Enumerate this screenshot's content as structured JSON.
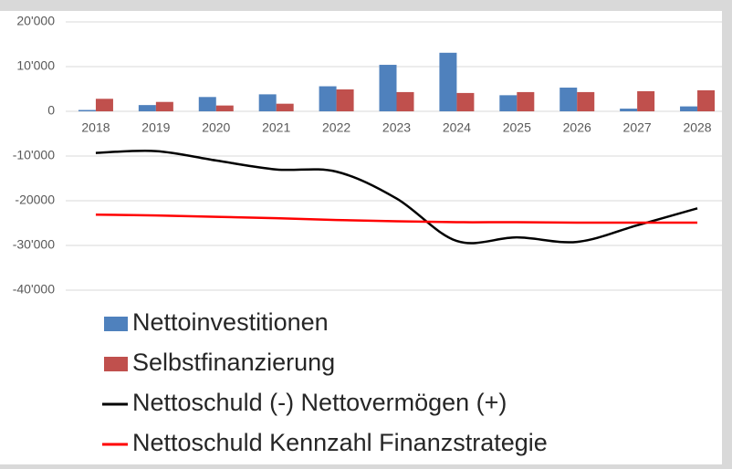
{
  "chart_data": {
    "type": "bar-line",
    "categories": [
      "2018",
      "2019",
      "2020",
      "2021",
      "2022",
      "2023",
      "2024",
      "2025",
      "2026",
      "2027",
      "2028"
    ],
    "series": [
      {
        "name": "Nettoinvestitionen",
        "type": "bar",
        "color": "#4f81bd",
        "values": [
          300,
          1400,
          3200,
          3800,
          5600,
          10400,
          13100,
          3600,
          5300,
          600,
          1100
        ]
      },
      {
        "name": "Selbstfinanzierung",
        "type": "bar",
        "color": "#c0504d",
        "values": [
          2800,
          2100,
          1300,
          1700,
          4900,
          4300,
          4100,
          4300,
          4300,
          4500,
          4700
        ]
      },
      {
        "name": "Nettoschuld (-) Nettovermögen (+)",
        "type": "line",
        "color": "#000000",
        "values": [
          -9300,
          -8900,
          -11000,
          -13000,
          -13500,
          -19500,
          -29000,
          -28200,
          -29200,
          -25500,
          -21700
        ]
      },
      {
        "name": "Nettoschuld Kennzahl Finanzstrategie",
        "type": "line",
        "color": "#ff0000",
        "values": [
          -23100,
          -23300,
          -23600,
          -23900,
          -24300,
          -24600,
          -24800,
          -24800,
          -24900,
          -24900,
          -24900
        ]
      }
    ],
    "ylim": [
      -40000,
      20000
    ],
    "yticks": [
      {
        "value": -40000,
        "label": "-40'000"
      },
      {
        "value": -30000,
        "label": "-30'000"
      },
      -20000,
      {
        "value": -10000,
        "label": "-10'000"
      },
      0,
      {
        "value": 10000,
        "label": "10'000"
      },
      {
        "value": 20000,
        "label": "20'000"
      }
    ],
    "grid": true,
    "legend": "bottom"
  }
}
